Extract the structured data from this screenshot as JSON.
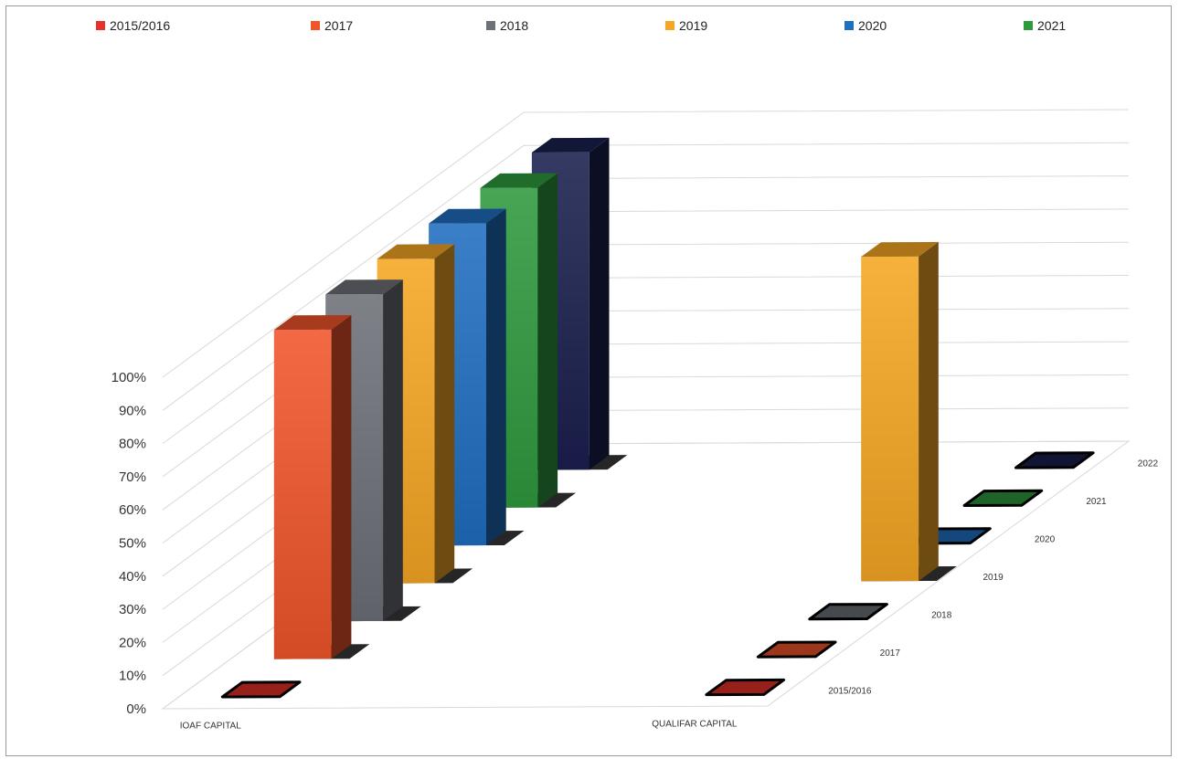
{
  "chart_data": {
    "type": "bar",
    "title": "",
    "xlabel": "",
    "ylabel": "",
    "ylim": [
      0,
      100
    ],
    "y_ticks": [
      "0%",
      "10%",
      "20%",
      "30%",
      "40%",
      "50%",
      "60%",
      "70%",
      "80%",
      "90%",
      "100%"
    ],
    "categories": [
      "IOAF CAPITAL",
      "QUALIFAR CAPITAL"
    ],
    "depth_categories": [
      "2015/2016",
      "2017",
      "2018",
      "2019",
      "2020",
      "2021",
      "2022"
    ],
    "legend_position": "top",
    "series": [
      {
        "name": "2015/2016",
        "color": "#e8312a",
        "values": [
          0,
          0
        ]
      },
      {
        "name": "2017",
        "color": "#f0552a",
        "values": [
          100,
          0
        ]
      },
      {
        "name": "2018",
        "color": "#6c7077",
        "values": [
          100,
          0
        ]
      },
      {
        "name": "2019",
        "color": "#f5a623",
        "values": [
          100,
          100
        ]
      },
      {
        "name": "2020",
        "color": "#1f6ec0",
        "values": [
          100,
          0
        ]
      },
      {
        "name": "2021",
        "color": "#2e9a3e",
        "values": [
          100,
          0
        ]
      },
      {
        "series_id": "2022",
        "color": "#1a1f4e",
        "values": [
          100,
          0
        ]
      }
    ]
  }
}
